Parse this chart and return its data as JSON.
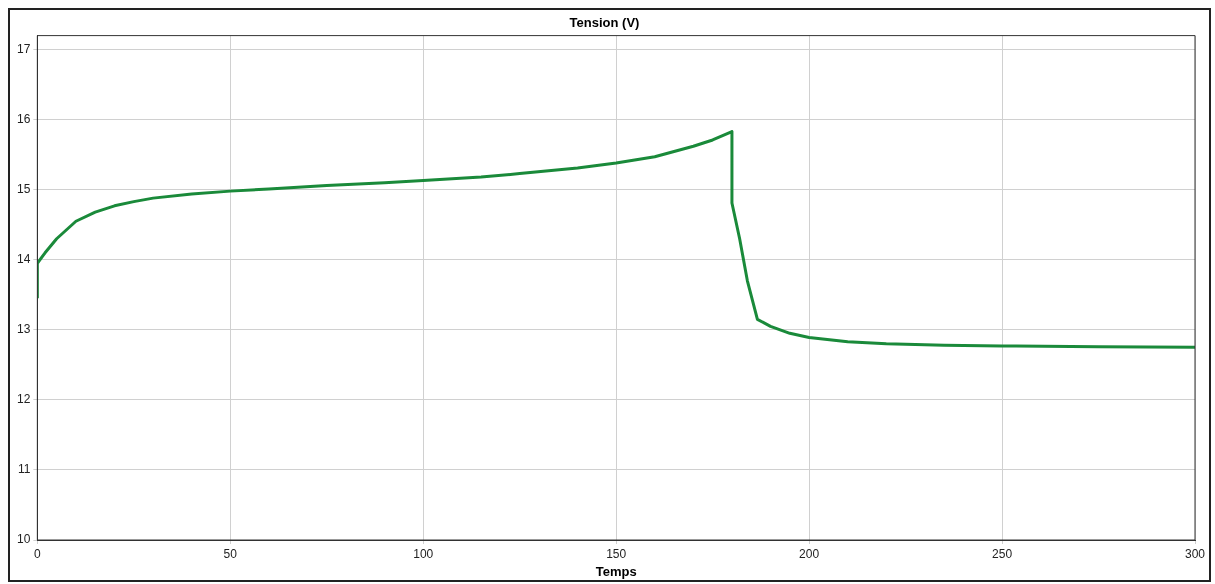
{
  "chart_data": {
    "type": "line",
    "title": "Tension (V)",
    "xlabel": "Temps",
    "xlim": [
      0,
      300
    ],
    "xticks": [
      0,
      50,
      100,
      150,
      200,
      250,
      300
    ],
    "ylim": [
      10,
      17.2
    ],
    "yticks": [
      10,
      11,
      12,
      13,
      14,
      15,
      16,
      17
    ],
    "grid": true,
    "legend": false,
    "marker": "none",
    "line_style": "solid",
    "series": [
      {
        "color": "#1a8a3a",
        "x": [
          0,
          0,
          2,
          5,
          10,
          15,
          20,
          25,
          30,
          40,
          50,
          60,
          75,
          90,
          100,
          115,
          125,
          140,
          150,
          160,
          170,
          175,
          180,
          180,
          182,
          184,
          186.6,
          190,
          195,
          200,
          210,
          220,
          235,
          250,
          275,
          300
        ],
        "values": [
          13.45,
          13.95,
          14.1,
          14.3,
          14.55,
          14.68,
          14.77,
          14.83,
          14.88,
          14.94,
          14.98,
          15.01,
          15.06,
          15.1,
          15.13,
          15.18,
          15.23,
          15.31,
          15.38,
          15.47,
          15.62,
          15.71,
          15.83,
          14.81,
          14.3,
          13.7,
          13.15,
          13.05,
          12.95,
          12.89,
          12.83,
          12.8,
          12.78,
          12.77,
          12.76,
          12.75
        ]
      }
    ]
  }
}
